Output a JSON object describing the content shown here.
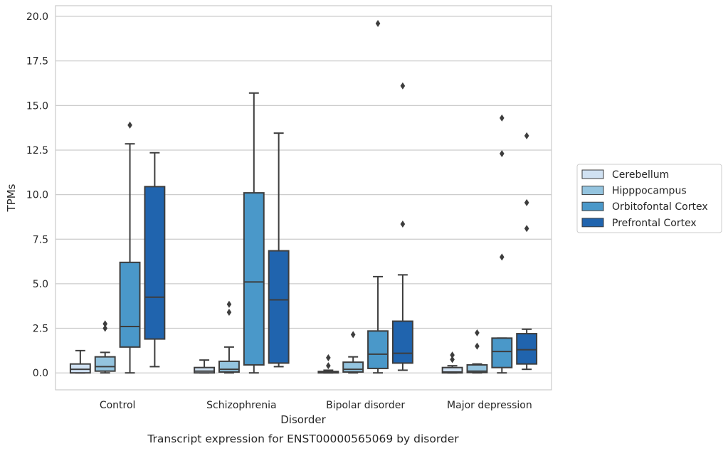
{
  "caption": "Transcript expression for ENST00000565069 by disorder",
  "chart_data": {
    "type": "box",
    "xlabel": "Disorder",
    "ylabel": "TPMs",
    "ylim": [
      -0.95,
      20.6
    ],
    "yticks": [
      "0.0",
      "2.5",
      "5.0",
      "7.5",
      "10.0",
      "12.5",
      "15.0",
      "17.5",
      "20.0"
    ],
    "ytick_values": [
      0,
      2.5,
      5,
      7.5,
      10,
      12.5,
      15,
      17.5,
      20
    ],
    "grid": "horizontal",
    "legend_position": "outside-right",
    "categories": [
      "Control",
      "Schizophrenia",
      "Bipolar disorder",
      "Major depression"
    ],
    "series": [
      {
        "name": "Cerebellum",
        "color": "#d0e1f2",
        "boxes": [
          {
            "whislo": 0.0,
            "q1": 0.0,
            "med": 0.2,
            "q3": 0.5,
            "whishi": 1.25,
            "fliers": []
          },
          {
            "whislo": 0.0,
            "q1": 0.0,
            "med": 0.1,
            "q3": 0.3,
            "whishi": 0.72,
            "fliers": []
          },
          {
            "whislo": 0.0,
            "q1": 0.0,
            "med": 0.02,
            "q3": 0.08,
            "whishi": 0.15,
            "fliers": [
              0.4,
              0.85
            ]
          },
          {
            "whislo": 0.0,
            "q1": 0.0,
            "med": 0.05,
            "q3": 0.3,
            "whishi": 0.4,
            "fliers": [
              0.75,
              1.0
            ]
          }
        ]
      },
      {
        "name": "Hipppocampus",
        "color": "#94c4df",
        "boxes": [
          {
            "whislo": 0.0,
            "q1": 0.1,
            "med": 0.35,
            "q3": 0.9,
            "whishi": 1.15,
            "fliers": [
              2.5,
              2.75
            ]
          },
          {
            "whislo": 0.0,
            "q1": 0.05,
            "med": 0.2,
            "q3": 0.65,
            "whishi": 1.45,
            "fliers": [
              3.4,
              3.85
            ]
          },
          {
            "whislo": 0.0,
            "q1": 0.05,
            "med": 0.2,
            "q3": 0.6,
            "whishi": 0.9,
            "fliers": [
              2.15
            ]
          },
          {
            "whislo": 0.0,
            "q1": 0.02,
            "med": 0.1,
            "q3": 0.45,
            "whishi": 0.5,
            "fliers": [
              1.5,
              2.25
            ]
          }
        ]
      },
      {
        "name": "Orbitofontal Cortex",
        "color": "#4a98c9",
        "boxes": [
          {
            "whislo": 0.0,
            "q1": 1.45,
            "med": 2.6,
            "q3": 6.2,
            "whishi": 12.85,
            "fliers": [
              13.9
            ]
          },
          {
            "whislo": 0.0,
            "q1": 0.45,
            "med": 5.1,
            "q3": 10.1,
            "whishi": 15.7,
            "fliers": []
          },
          {
            "whislo": 0.0,
            "q1": 0.25,
            "med": 1.05,
            "q3": 2.35,
            "whishi": 5.4,
            "fliers": [
              19.6
            ]
          },
          {
            "whislo": 0.0,
            "q1": 0.3,
            "med": 1.2,
            "q3": 1.95,
            "whishi": 1.95,
            "fliers": [
              6.5,
              12.3,
              14.3
            ]
          }
        ]
      },
      {
        "name": "Prefrontal Cortex",
        "color": "#2064ae",
        "boxes": [
          {
            "whislo": 0.35,
            "q1": 1.9,
            "med": 4.25,
            "q3": 10.45,
            "whishi": 12.35,
            "fliers": []
          },
          {
            "whislo": 0.35,
            "q1": 0.55,
            "med": 4.1,
            "q3": 6.85,
            "whishi": 13.45,
            "fliers": []
          },
          {
            "whislo": 0.15,
            "q1": 0.55,
            "med": 1.1,
            "q3": 2.9,
            "whishi": 5.5,
            "fliers": [
              8.35,
              16.1
            ]
          },
          {
            "whislo": 0.2,
            "q1": 0.5,
            "med": 1.3,
            "q3": 2.2,
            "whishi": 2.45,
            "fliers": [
              8.1,
              9.55,
              13.3
            ]
          }
        ]
      }
    ]
  }
}
